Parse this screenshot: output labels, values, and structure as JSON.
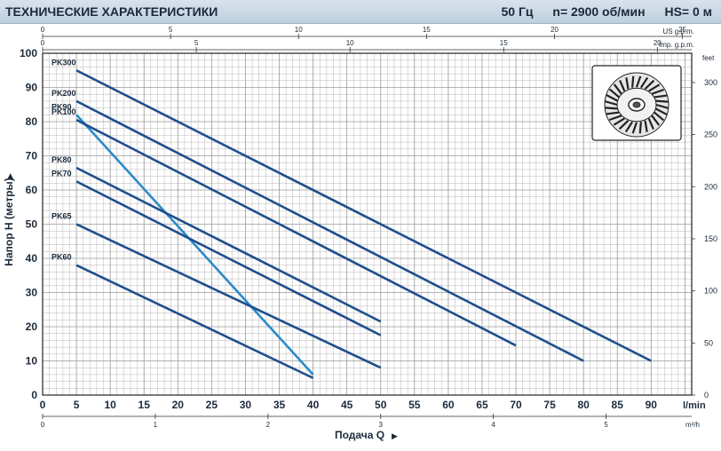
{
  "header": {
    "title": "ТЕХНИЧЕСКИЕ ХАРАКТЕРИСТИКИ",
    "frequency": "50 Гц",
    "speed": "n= 2900 об/мин",
    "suction": "HS= 0 м"
  },
  "colors": {
    "grid": "#9a9a9a",
    "curve": "#1f4e8c",
    "efficiency": "#2b8bc9",
    "text": "#1b2a3a"
  },
  "icon": "impeller-icon",
  "chart_data": {
    "type": "line",
    "title": "",
    "xlabel": "Подача Q",
    "ylabel": "Напор H (метры)",
    "x_unit": "l/min",
    "xlim": [
      0,
      96
    ],
    "ylim": [
      0,
      100
    ],
    "x_ticks": [
      0,
      5,
      10,
      15,
      20,
      25,
      30,
      35,
      40,
      45,
      50,
      55,
      60,
      65,
      70,
      75,
      80,
      85,
      90
    ],
    "y_ticks": [
      0,
      10,
      20,
      30,
      40,
      50,
      60,
      70,
      80,
      90,
      100
    ],
    "grid": true,
    "secondary_axes": {
      "us_gpm": {
        "label": "US g.p.m.",
        "ticks": [
          0,
          5,
          10,
          15,
          20,
          25
        ]
      },
      "imp_gpm": {
        "label": "Imp. g.p.m.",
        "ticks": [
          0,
          5,
          10,
          15,
          20
        ]
      },
      "m3h": {
        "label": "m³/h",
        "ticks": [
          0,
          1,
          2,
          3,
          4,
          5
        ]
      },
      "feet": {
        "label": "feet",
        "ticks": [
          0,
          50,
          100,
          150,
          200,
          250,
          300
        ]
      }
    },
    "series": [
      {
        "name": "PK300",
        "x": [
          5,
          90
        ],
        "y": [
          95,
          10
        ]
      },
      {
        "name": "PK200",
        "x": [
          5,
          80
        ],
        "y": [
          86,
          10
        ]
      },
      {
        "name": "PK90",
        "x": [
          5,
          40
        ],
        "y": [
          82,
          6
        ]
      },
      {
        "name": "PK100",
        "x": [
          5,
          70
        ],
        "y": [
          80.5,
          14.5
        ]
      },
      {
        "name": "PK80",
        "x": [
          5,
          50
        ],
        "y": [
          66.5,
          21.5
        ]
      },
      {
        "name": "PK70",
        "x": [
          5,
          50
        ],
        "y": [
          62.5,
          17.5
        ]
      },
      {
        "name": "PK65",
        "x": [
          5,
          50
        ],
        "y": [
          50,
          8
        ]
      },
      {
        "name": "PK60",
        "x": [
          5,
          40
        ],
        "y": [
          38,
          5
        ]
      }
    ]
  }
}
